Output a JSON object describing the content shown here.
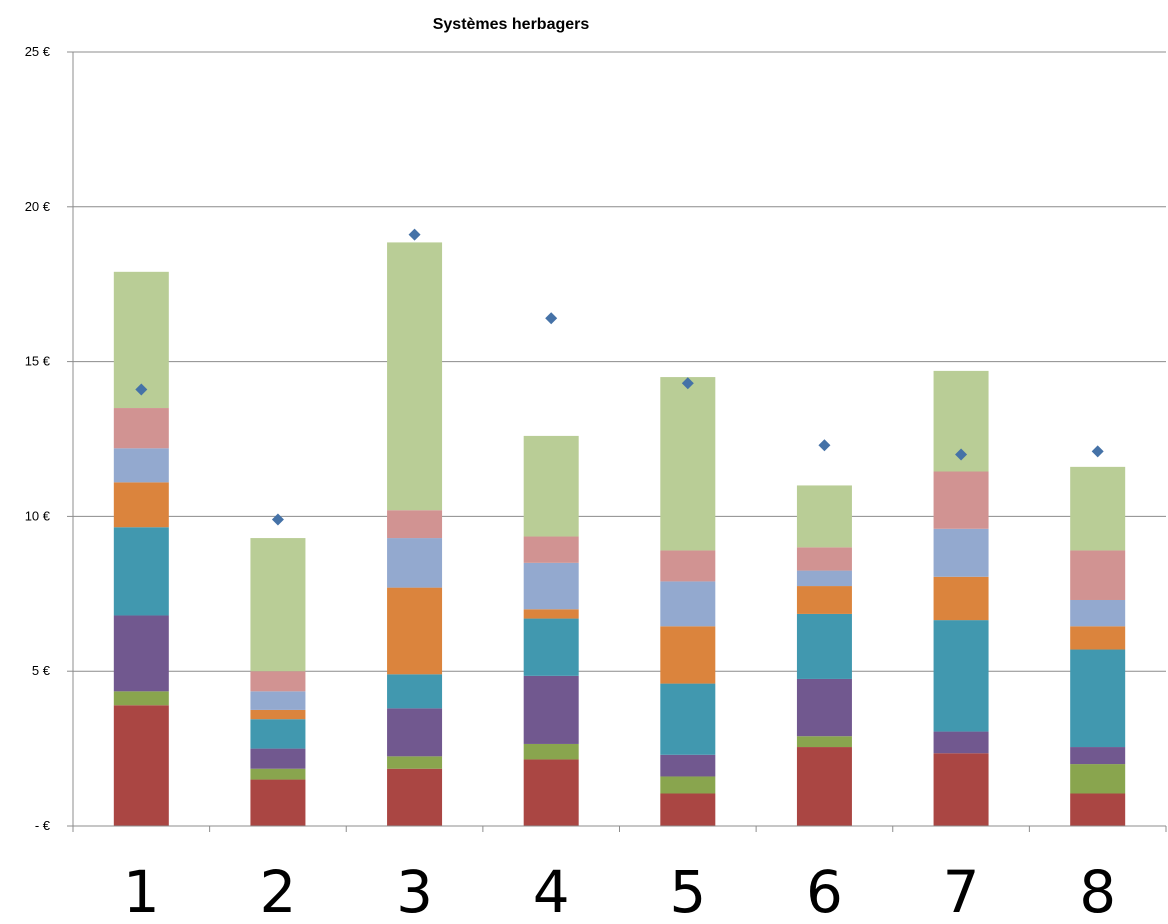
{
  "chart_data": {
    "type": "bar",
    "stacked": true,
    "title": "Systèmes herbagers",
    "xlabel": "",
    "ylabel": "",
    "ylim": [
      0,
      25
    ],
    "yticks": [
      0,
      5,
      10,
      15,
      20,
      25
    ],
    "ytick_labels": [
      "- €",
      "5 €",
      "10 €",
      "15 €",
      "20 €",
      "25 €"
    ],
    "grid": true,
    "legend": "none",
    "categories": [
      "1",
      "2",
      "3",
      "4",
      "5",
      "6",
      "7",
      "8"
    ],
    "series": [
      {
        "color": "#AA4643",
        "values": [
          3.9,
          1.5,
          1.85,
          2.15,
          1.05,
          2.55,
          2.35,
          1.05
        ]
      },
      {
        "color": "#89A54E",
        "values": [
          0.45,
          0.35,
          0.4,
          0.5,
          0.55,
          0.35,
          0.0,
          0.95
        ]
      },
      {
        "color": "#71588F",
        "values": [
          2.45,
          0.65,
          1.55,
          2.2,
          0.7,
          1.85,
          0.7,
          0.55
        ]
      },
      {
        "color": "#4198AF",
        "values": [
          2.85,
          0.95,
          1.1,
          1.85,
          2.3,
          2.1,
          3.6,
          3.15
        ]
      },
      {
        "color": "#DB843D",
        "values": [
          1.45,
          0.3,
          2.8,
          0.3,
          1.85,
          0.9,
          1.4,
          0.75
        ]
      },
      {
        "color": "#93A9CF",
        "values": [
          1.1,
          0.6,
          1.6,
          1.5,
          1.45,
          0.5,
          1.55,
          0.85
        ]
      },
      {
        "color": "#D19392",
        "values": [
          1.3,
          0.65,
          0.9,
          0.85,
          1.0,
          0.75,
          1.85,
          1.6
        ]
      },
      {
        "color": "#B9CD96",
        "values": [
          4.4,
          4.3,
          8.65,
          3.25,
          5.6,
          2.0,
          3.25,
          2.7
        ]
      }
    ],
    "markers": {
      "shape": "diamond",
      "color": "#4572A7",
      "values": [
        14.1,
        9.9,
        19.1,
        16.4,
        14.3,
        12.3,
        12.0,
        12.1
      ]
    }
  }
}
